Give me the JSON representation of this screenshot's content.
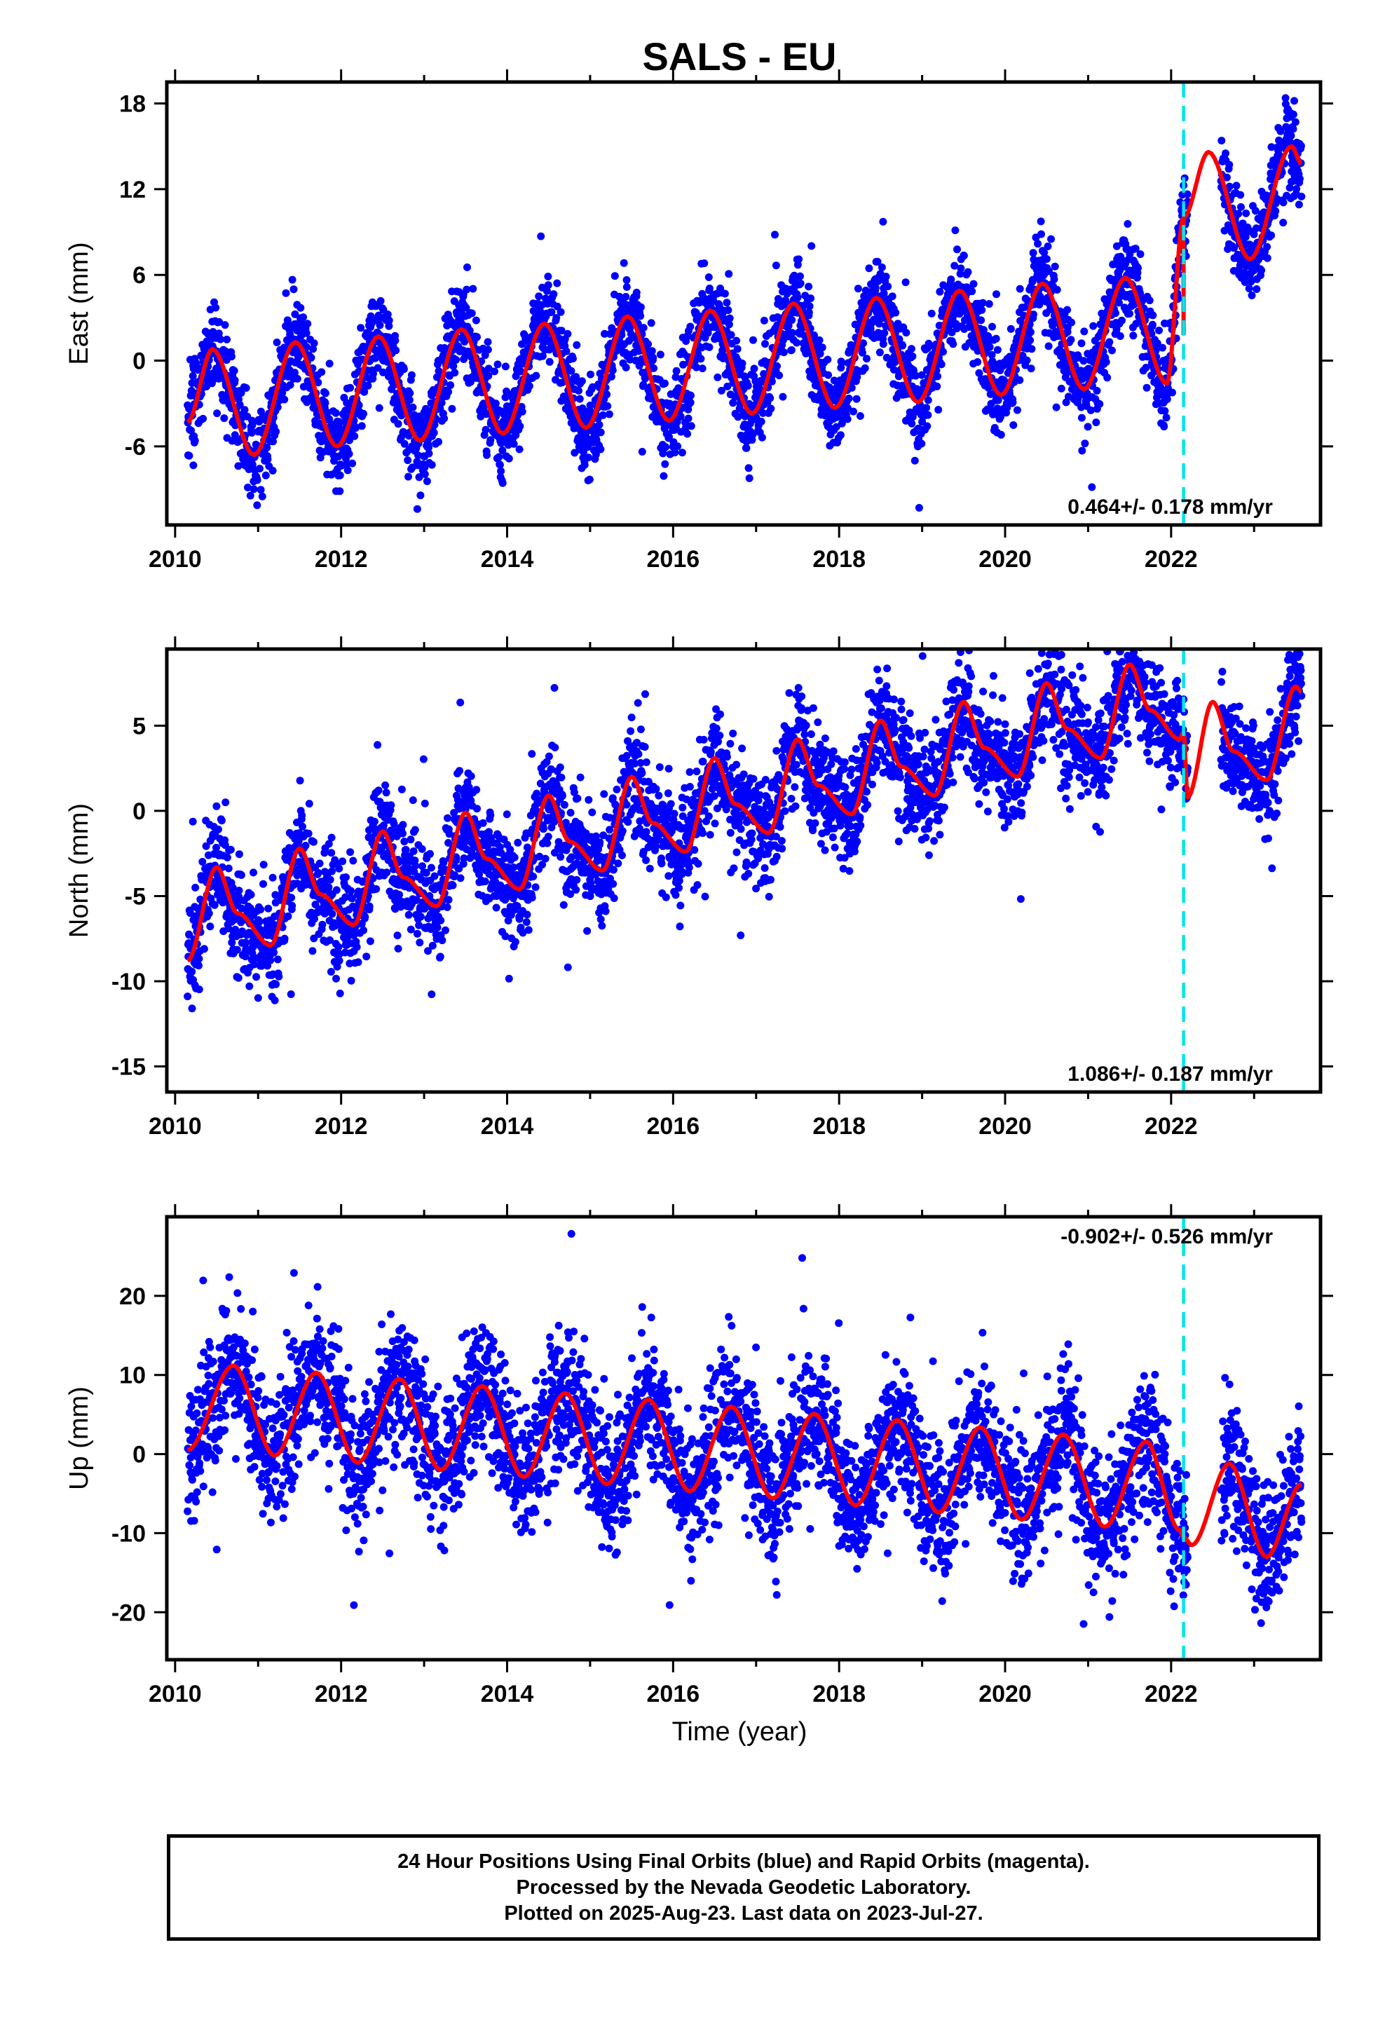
{
  "title": "SALS - EU",
  "xlabel": "Time (year)",
  "footer": {
    "line1": "24 Hour Positions Using Final Orbits (blue) and Rapid Orbits (magenta).",
    "line2": "Processed by the Nevada Geodetic Laboratory.",
    "line3": "Plotted on 2025-Aug-23. Last data on 2023-Jul-27."
  },
  "colors": {
    "points": "#0000ff",
    "model": "#ff0000",
    "equipment_change": "#00e5ee",
    "axes": "#000000"
  },
  "chart_data": [
    {
      "type": "scatter",
      "component": "east",
      "ylabel": "East (mm)",
      "xlim": [
        2009.9,
        2023.8
      ],
      "ylim": [
        -11.5,
        19.5
      ],
      "xticks": [
        "2010",
        "2012",
        "2014",
        "2016",
        "2018",
        "2020",
        "2022"
      ],
      "yticks": [
        "-6",
        "0",
        "6",
        "12",
        "18"
      ],
      "ytick_values": [
        -6,
        0,
        6,
        12,
        18
      ],
      "rate_text": "0.464+/- 0.178 mm/yr",
      "rate_position": "bottom-right",
      "equipment_change_epoch": 2022.15,
      "data_start": 2010.15,
      "data_end": 2023.57,
      "gap": [
        2022.2,
        2022.6
      ],
      "points_series": {
        "name": "Final Orbits",
        "point_count": 4200
      },
      "model_series": {
        "name": "Model",
        "x": [
          2010.15,
          2010.45,
          2010.95,
          2011.45,
          2011.95,
          2012.45,
          2012.95,
          2013.45,
          2013.95,
          2014.45,
          2014.95,
          2015.45,
          2015.95,
          2016.45,
          2016.95,
          2017.45,
          2017.95,
          2018.45,
          2018.95,
          2019.45,
          2019.95,
          2020.45,
          2020.95,
          2021.45,
          2021.95,
          2022.15,
          2022.45,
          2022.95,
          2023.45,
          2023.57
        ],
        "y": [
          -4.3,
          0.8,
          -6.6,
          1.3,
          -6.0,
          1.7,
          -5.6,
          2.2,
          -5.1,
          2.6,
          -4.7,
          3.1,
          -4.2,
          3.5,
          -3.7,
          4.0,
          -3.3,
          4.4,
          -2.9,
          4.9,
          -2.4,
          5.4,
          -2.0,
          5.8,
          -1.6,
          10.0,
          14.6,
          7.1,
          15.0,
          13.8
        ]
      },
      "equipment_jump": {
        "x": 2022.15,
        "y_before": 1.8,
        "y_after": 10.0
      }
    },
    {
      "type": "scatter",
      "component": "north",
      "ylabel": "North (mm)",
      "xlim": [
        2009.9,
        2023.8
      ],
      "ylim": [
        -16.5,
        9.5
      ],
      "xticks": [
        "2010",
        "2012",
        "2014",
        "2016",
        "2018",
        "2020",
        "2022"
      ],
      "yticks": [
        "-15",
        "-10",
        "-5",
        "0",
        "5"
      ],
      "ytick_values": [
        -15,
        -10,
        -5,
        0,
        5
      ],
      "rate_text": "1.086+/- 0.187 mm/yr",
      "rate_position": "bottom-right",
      "equipment_change_epoch": 2022.15,
      "data_start": 2010.15,
      "data_end": 2023.57,
      "gap": [
        2022.2,
        2022.6
      ],
      "points_series": {
        "name": "Final Orbits",
        "point_count": 4200
      },
      "model_series": {
        "name": "Model",
        "x": [
          2010.15,
          2010.5,
          2010.75,
          2011.15,
          2011.5,
          2011.75,
          2012.15,
          2012.5,
          2012.75,
          2013.15,
          2013.5,
          2013.75,
          2014.15,
          2014.5,
          2014.75,
          2015.15,
          2015.5,
          2015.75,
          2016.15,
          2016.5,
          2016.75,
          2017.15,
          2017.5,
          2017.75,
          2018.15,
          2018.5,
          2018.75,
          2019.15,
          2019.5,
          2019.75,
          2020.15,
          2020.5,
          2020.75,
          2021.15,
          2021.5,
          2021.75,
          2022.1,
          2022.15,
          2022.2,
          2022.5,
          2022.75,
          2023.15,
          2023.5,
          2023.57
        ],
        "y": [
          -8.8,
          -3.3,
          -6.0,
          -7.9,
          -2.2,
          -4.9,
          -6.7,
          -1.2,
          -3.9,
          -5.6,
          -0.1,
          -2.8,
          -4.6,
          0.9,
          -1.8,
          -3.5,
          2.0,
          -0.7,
          -2.4,
          3.1,
          0.4,
          -1.3,
          4.2,
          1.5,
          -0.2,
          5.3,
          2.6,
          0.9,
          6.4,
          3.7,
          2.0,
          7.5,
          4.8,
          3.1,
          8.6,
          5.9,
          4.2,
          4.6,
          0.8,
          6.4,
          3.5,
          1.8,
          7.3,
          7.0
        ]
      }
    },
    {
      "type": "scatter",
      "component": "up",
      "ylabel": "Up (mm)",
      "xlim": [
        2009.9,
        2023.8
      ],
      "ylim": [
        -26,
        30
      ],
      "xticks": [
        "2010",
        "2012",
        "2014",
        "2016",
        "2018",
        "2020",
        "2022"
      ],
      "yticks": [
        "-20",
        "-10",
        "0",
        "10",
        "20"
      ],
      "ytick_values": [
        -20,
        -10,
        0,
        10,
        20
      ],
      "rate_text": "-0.902+/- 0.526 mm/yr",
      "rate_position": "top-right",
      "equipment_change_epoch": 2022.15,
      "data_start": 2010.15,
      "data_end": 2023.57,
      "gap": [
        2022.2,
        2022.6
      ],
      "points_series": {
        "name": "Final Orbits",
        "point_count": 4200
      },
      "model_series": {
        "name": "Model",
        "x": [
          2010.15,
          2010.7,
          2011.2,
          2011.7,
          2012.2,
          2012.7,
          2013.2,
          2013.7,
          2014.2,
          2014.7,
          2015.2,
          2015.7,
          2016.2,
          2016.7,
          2017.2,
          2017.7,
          2018.2,
          2018.7,
          2019.2,
          2019.7,
          2020.2,
          2020.7,
          2021.2,
          2021.7,
          2022.1,
          2022.15,
          2022.25,
          2022.7,
          2023.15,
          2023.57
        ],
        "y": [
          0.5,
          11.2,
          -0.2,
          10.3,
          -1.1,
          9.5,
          -2.0,
          8.6,
          -2.9,
          7.7,
          -3.8,
          6.9,
          -4.7,
          6.0,
          -5.6,
          5.1,
          -6.5,
          4.3,
          -7.4,
          3.4,
          -8.3,
          2.5,
          -9.2,
          1.6,
          -9.6,
          -10.5,
          -11.5,
          -1.2,
          -13.0,
          -3.8
        ]
      }
    }
  ]
}
